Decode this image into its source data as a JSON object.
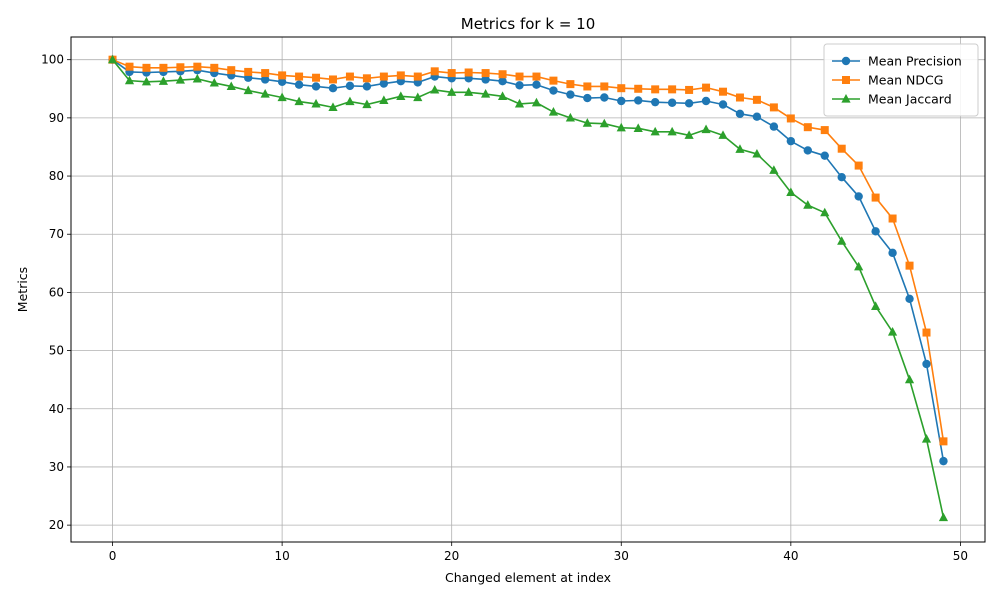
{
  "chart_data": {
    "type": "line",
    "title": "Metrics for k = 10",
    "xlabel": "Changed element at index",
    "ylabel": "Metrics",
    "xlim": [
      -2.45,
      51.45
    ],
    "ylim": [
      17.1,
      103.9
    ],
    "xticks": [
      0,
      10,
      20,
      30,
      40,
      50
    ],
    "yticks": [
      20,
      30,
      40,
      50,
      60,
      70,
      80,
      90,
      100
    ],
    "grid": true,
    "legend_position": "top-right",
    "x": [
      0,
      1,
      2,
      3,
      4,
      5,
      6,
      7,
      8,
      9,
      10,
      11,
      12,
      13,
      14,
      15,
      16,
      17,
      18,
      19,
      20,
      21,
      22,
      23,
      24,
      25,
      26,
      27,
      28,
      29,
      30,
      31,
      32,
      33,
      34,
      35,
      36,
      37,
      38,
      39,
      40,
      41,
      42,
      43,
      44,
      45,
      46,
      47,
      48,
      49
    ],
    "series": [
      {
        "name": "Mean Precision",
        "color": "#1f77b4",
        "marker": "circle",
        "values": [
          100.0,
          97.9,
          97.8,
          97.9,
          98.0,
          98.2,
          97.7,
          97.3,
          96.9,
          96.6,
          96.2,
          95.7,
          95.4,
          95.1,
          95.5,
          95.4,
          95.9,
          96.3,
          96.1,
          97.1,
          96.8,
          96.8,
          96.6,
          96.3,
          95.6,
          95.7,
          94.7,
          94.0,
          93.4,
          93.5,
          92.9,
          93.0,
          92.7,
          92.6,
          92.5,
          92.9,
          92.3,
          90.7,
          90.2,
          88.5,
          86.0,
          84.4,
          83.5,
          79.8,
          76.5,
          70.5,
          66.8,
          58.9,
          47.7,
          31.0
        ]
      },
      {
        "name": "Mean NDCG",
        "color": "#ff7f0e",
        "marker": "square",
        "values": [
          100.0,
          98.8,
          98.6,
          98.6,
          98.7,
          98.8,
          98.6,
          98.2,
          97.9,
          97.7,
          97.3,
          97.1,
          96.9,
          96.6,
          97.1,
          96.8,
          97.1,
          97.3,
          97.1,
          98.0,
          97.7,
          97.8,
          97.7,
          97.5,
          97.1,
          97.1,
          96.4,
          95.8,
          95.4,
          95.4,
          95.1,
          95.0,
          94.9,
          94.9,
          94.8,
          95.2,
          94.5,
          93.5,
          93.1,
          91.8,
          89.9,
          88.4,
          87.9,
          84.7,
          81.8,
          76.3,
          72.7,
          64.6,
          53.1,
          34.4
        ]
      },
      {
        "name": "Mean Jaccard",
        "color": "#2ca02c",
        "marker": "triangle",
        "values": [
          100.0,
          96.4,
          96.2,
          96.3,
          96.5,
          96.7,
          96.0,
          95.4,
          94.7,
          94.1,
          93.5,
          92.8,
          92.4,
          91.8,
          92.8,
          92.3,
          93.0,
          93.7,
          93.5,
          94.8,
          94.4,
          94.4,
          94.1,
          93.7,
          92.4,
          92.6,
          91.0,
          90.0,
          89.1,
          89.0,
          88.3,
          88.2,
          87.6,
          87.6,
          87.0,
          88.0,
          87.0,
          84.6,
          83.8,
          81.0,
          77.2,
          75.0,
          73.7,
          68.8,
          64.4,
          57.6,
          53.2,
          45.0,
          34.8,
          21.3
        ]
      }
    ]
  }
}
